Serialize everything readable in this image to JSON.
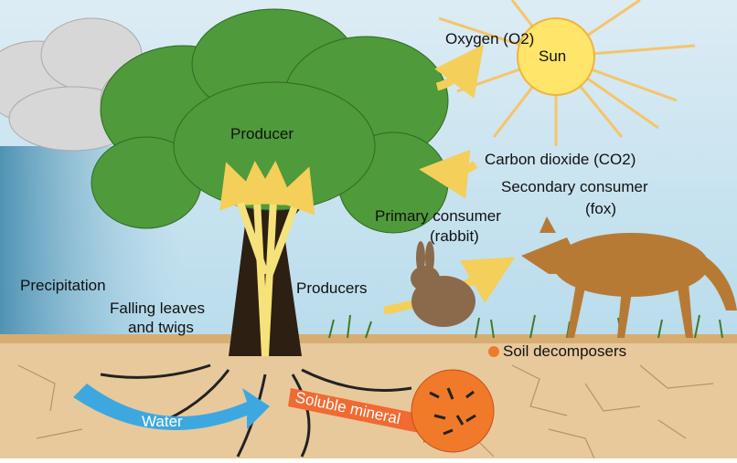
{
  "labels": [
    "Oxygen (O2)",
    "Sun",
    "Producer",
    "Carbon dioxide (CO2)",
    "Secondary consumer",
    "(fox)",
    "Primary consumer",
    "(rabbit)",
    "Precipitation",
    "Falling leaves",
    "and twigs",
    "Producers",
    "Soil decomposers",
    "Water",
    "Soluble mineral"
  ]
}
